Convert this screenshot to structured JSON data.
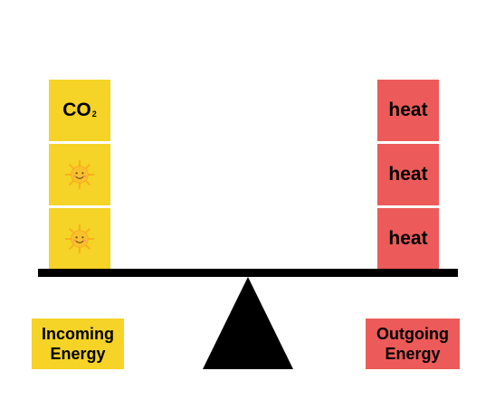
{
  "left_stack": {
    "top_block": {
      "main": "CO",
      "sub": "2"
    },
    "sun_icons": [
      "sun-icon",
      "sun-icon"
    ]
  },
  "right_stack": {
    "blocks": [
      "heat",
      "heat",
      "heat"
    ]
  },
  "labels": {
    "incoming": {
      "line1": "Incoming",
      "line2": "Energy"
    },
    "outgoing": {
      "line1": "Outgoing",
      "line2": "Energy"
    }
  },
  "colors": {
    "incoming": "#f5d327",
    "outgoing": "#ec5b59",
    "balance": "#000000"
  }
}
